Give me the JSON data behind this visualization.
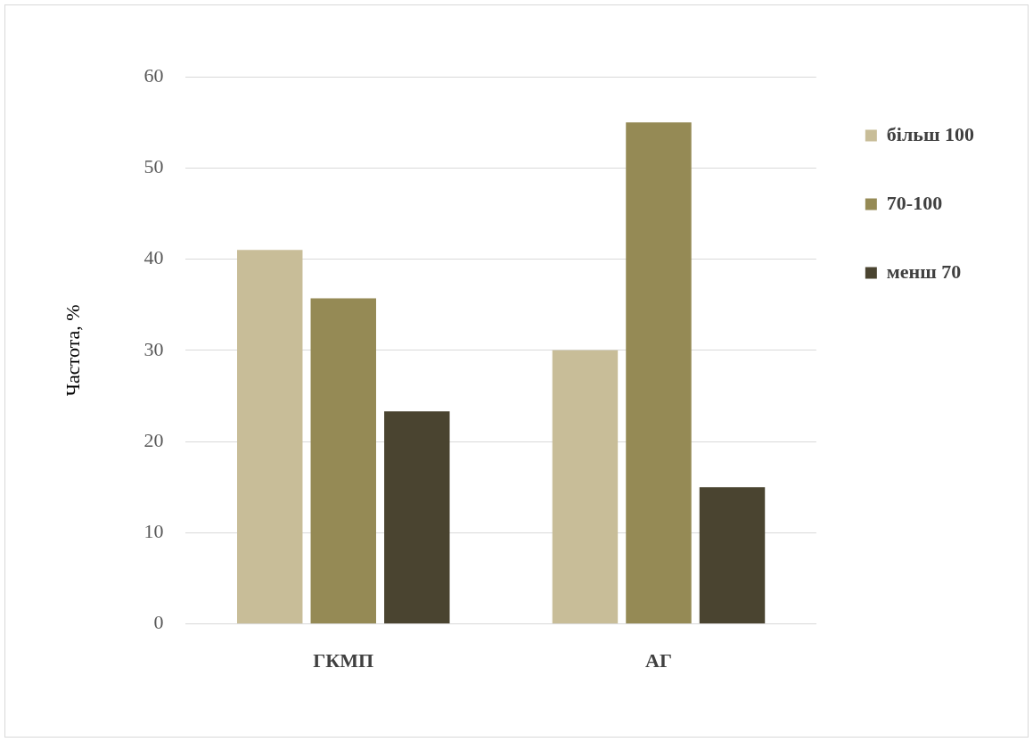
{
  "chart_data": {
    "type": "bar",
    "ylabel": "Частота, %",
    "categories": [
      "ГКМП",
      "АГ"
    ],
    "series": [
      {
        "name": "більш 100",
        "color": "#c8bd98",
        "values": [
          41,
          30
        ]
      },
      {
        "name": "70-100",
        "color": "#958a55",
        "values": [
          35.7,
          55
        ]
      },
      {
        "name": "менш 70",
        "color": "#4a4430",
        "values": [
          23.3,
          15
        ]
      }
    ],
    "ylim": [
      0,
      60
    ],
    "yticks": [
      0,
      10,
      20,
      30,
      40,
      50,
      60
    ],
    "grid": "y",
    "legend": "right"
  }
}
